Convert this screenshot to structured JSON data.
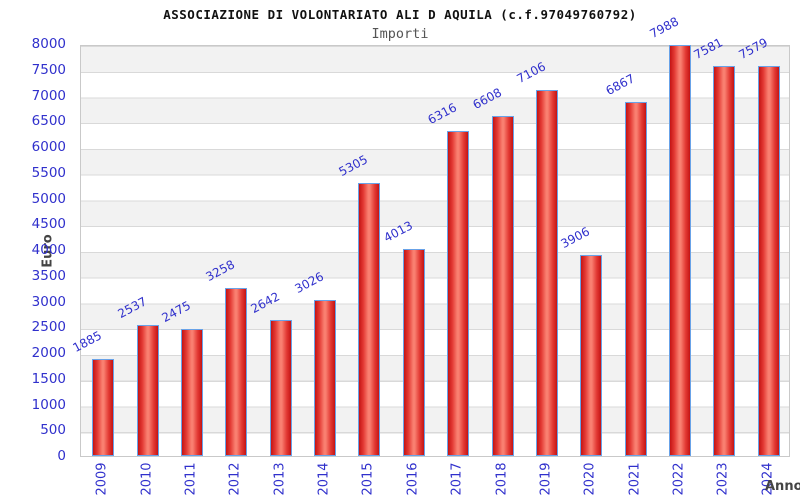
{
  "header": {
    "title": "ASSOCIAZIONE DI VOLONTARIATO ALI D AQUILA (c.f.97049760792)",
    "subtitle": "Importi"
  },
  "chart_data": {
    "type": "bar",
    "title": "ASSOCIAZIONE DI VOLONTARIATO ALI D AQUILA (c.f.97049760792)",
    "subtitle": "Importi",
    "xlabel": "Anno",
    "ylabel": "Euro",
    "categories": [
      "2009",
      "2010",
      "2011",
      "2012",
      "2013",
      "2014",
      "2015",
      "2016",
      "2017",
      "2018",
      "2019",
      "2020",
      "2021",
      "2022",
      "2023",
      "2024"
    ],
    "values": [
      1885,
      2537,
      2475,
      3258,
      2642,
      3026,
      5305,
      4013,
      6316,
      6608,
      7106,
      3906,
      6867,
      7988,
      7581,
      7579
    ],
    "ylim": [
      0,
      8000
    ],
    "ytick_step": 500,
    "grid": true,
    "legend": null,
    "background_bands": "alternating gray/white per 500 units, gray band at top",
    "series_color": "red gradient bars with light blue border",
    "value_labels_rotated_deg": -28,
    "category_labels_rotated_deg": -90
  },
  "colors": {
    "accent_blue": "#3030cc",
    "bar_border": "#68a2e8",
    "bar_dark": "#c41414",
    "bar_light": "#f97f70",
    "band_gray": "#f2f2f2",
    "grid_line": "#d9d9d9",
    "plot_border": "#c9c9c9",
    "label_gray": "#444444"
  }
}
